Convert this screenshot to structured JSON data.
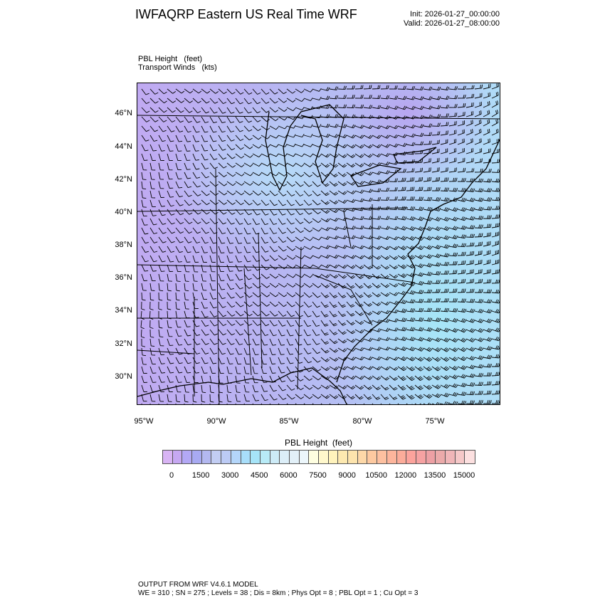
{
  "header": {
    "title": "IWFAQRP Eastern US Real Time WRF",
    "init": "Init: 2026-01-27_00:00:00",
    "valid": "Valid: 2026-01-27_08:00:00"
  },
  "fields": {
    "line1": "PBL Height   (feet)",
    "line2": "Transport Winds   (kts)"
  },
  "map": {
    "lat_labels": [
      "46°N",
      "44°N",
      "42°N",
      "40°N",
      "38°N",
      "36°N",
      "34°N",
      "32°N",
      "30°N"
    ],
    "lon_labels": [
      "95°W",
      "90°W",
      "85°W",
      "80°W",
      "75°W"
    ]
  },
  "colorbar": {
    "title": "PBL Height  (feet)",
    "labels": [
      "0",
      "1500",
      "3000",
      "4500",
      "6000",
      "7500",
      "9000",
      "10500",
      "12000",
      "13500",
      "15000"
    ],
    "colors": [
      "#d8b4f4",
      "#c6a8f2",
      "#b3a8f5",
      "#a8aaf2",
      "#b3b8f0",
      "#c2cdf3",
      "#bccbf5",
      "#b4d6fa",
      "#a8defa",
      "#a6e4f8",
      "#b8ebf7",
      "#cdebf7",
      "#dceef8",
      "#e2f0f8",
      "#ecf6fb",
      "#fefee0",
      "#fff8cc",
      "#fff3bc",
      "#fde9b0",
      "#fde4ad",
      "#fdd8a8",
      "#fdc9a0",
      "#fdc0a0",
      "#fdb59c",
      "#fcac9a",
      "#fca39c",
      "#f6a2a2",
      "#eda0a4",
      "#ebaaaa",
      "#f0b6b8",
      "#f5c8c8",
      "#fce0e0"
    ]
  },
  "footer": {
    "line1": "OUTPUT FROM WRF V4.6.1 MODEL",
    "line2": "WE = 310 ; SN = 275 ; Levels = 38 ; Dis = 8km ; Phys Opt = 8 ; PBL Opt = 1 ; Cu Opt = 3"
  }
}
